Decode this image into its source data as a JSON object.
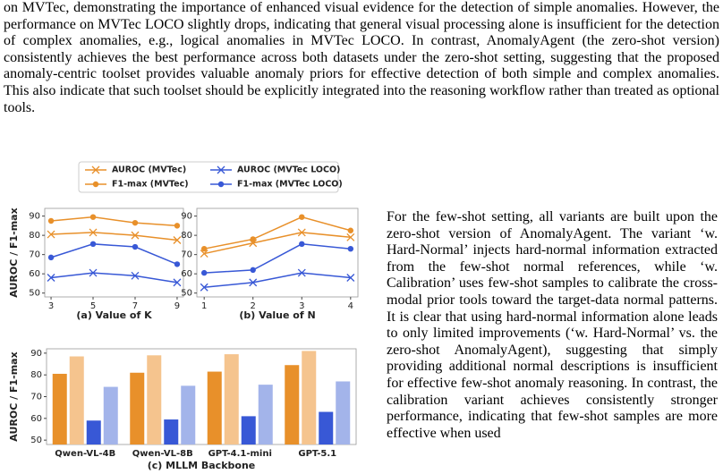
{
  "text": {
    "top": "on MVTec, demonstrating the importance of enhanced visual evidence for the detection of simple anomalies. However, the performance on MVTec LOCO slightly drops, indicating that general visual processing alone is insufficient for the detection of complex anomalies, e.g., logical anomalies in MVTec LOCO. In contrast, AnomalyAgent (the zero-shot version) consistently achieves the best performance across both datasets under the zero-shot setting, suggesting that the proposed anomaly-centric toolset provides valuable anomaly priors for effective detection of both simple and complex anomalies. This also indicate that such toolset should be explicitly integrated into the reasoning workflow rather than treated as optional tools.",
    "right": "For the few-shot setting, all variants are built upon the zero-shot version of AnomalyAgent. The variant ‘w. Hard-Normal’ injects hard-normal information extracted from the few-shot normal references, while ‘w. Calibration’ uses few-shot samples to calibrate the cross-modal prior tools toward the target-data normal patterns. It is clear that using hard-normal information alone leads to only limited improvements (‘w. Hard-Normal’ vs. the zero-shot AnomalyAgent), suggesting that simply providing additional normal descriptions is insufficient for effective few-shot anomaly reasoning. In contrast, the calibration variant achieves consistently stronger performance, indicating that few-shot samples are more effective when used"
  },
  "chart_data": [
    {
      "type": "line",
      "ylabel": "AUROC / F1-max",
      "xlabel": "(a) Value of K",
      "x": [
        3,
        5,
        7,
        9
      ],
      "xlim": [
        2.7,
        9.3
      ],
      "xticks": [
        3,
        5,
        7,
        9
      ],
      "ylim": [
        48,
        94
      ],
      "yticks": [
        50,
        60,
        70,
        80,
        90
      ],
      "series": [
        {
          "name": "AUROC (MVTec)",
          "color": "#e8902a",
          "marker": "x",
          "values": [
            80.5,
            81.5,
            80,
            77.5
          ]
        },
        {
          "name": "F1-max (MVTec)",
          "color": "#e8902a",
          "marker": "o",
          "values": [
            87.5,
            89.5,
            86.5,
            85
          ]
        },
        {
          "name": "AUROC (MVTec LOCO)",
          "color": "#3858d6",
          "marker": "x",
          "values": [
            58,
            60.5,
            59,
            55.5
          ]
        },
        {
          "name": "F1-max (MVTec LOCO)",
          "color": "#3858d6",
          "marker": "o",
          "values": [
            68.5,
            75.5,
            74,
            65
          ]
        }
      ]
    },
    {
      "type": "line",
      "xlabel": "(b) Value of N",
      "x": [
        1,
        2,
        3,
        4
      ],
      "xlim": [
        0.85,
        4.15
      ],
      "xticks": [
        1,
        2,
        3,
        4
      ],
      "ylim": [
        48,
        94
      ],
      "yticks": [
        50,
        60,
        70,
        80,
        90
      ],
      "series": [
        {
          "color": "#e8902a",
          "marker": "x",
          "values": [
            70.5,
            76,
            81.5,
            79
          ]
        },
        {
          "color": "#e8902a",
          "marker": "o",
          "values": [
            73,
            78,
            89.5,
            82.5
          ]
        },
        {
          "color": "#3858d6",
          "marker": "x",
          "values": [
            53,
            55.5,
            60.5,
            58
          ]
        },
        {
          "color": "#3858d6",
          "marker": "o",
          "values": [
            60.5,
            62,
            75.5,
            73
          ]
        }
      ]
    },
    {
      "type": "bar",
      "ylabel": "AUROC / F1-max",
      "xlabel": "(c) MLLM Backbone",
      "categories": [
        "Qwen-VL-4B",
        "Qwen-VL-8B",
        "GPT-4.1-mini",
        "GPT-5.1"
      ],
      "ylim": [
        48,
        92
      ],
      "yticks": [
        50,
        60,
        70,
        80,
        90
      ],
      "series": [
        {
          "color": "#e8902a",
          "values": [
            80.5,
            81,
            81.5,
            84.5
          ]
        },
        {
          "color": "#f5c48e",
          "values": [
            88.5,
            89,
            89.5,
            91
          ]
        },
        {
          "color": "#3858d6",
          "values": [
            59,
            59.5,
            61,
            63
          ]
        },
        {
          "color": "#a3b4ea",
          "values": [
            74.5,
            75,
            75.5,
            77
          ]
        }
      ]
    }
  ]
}
